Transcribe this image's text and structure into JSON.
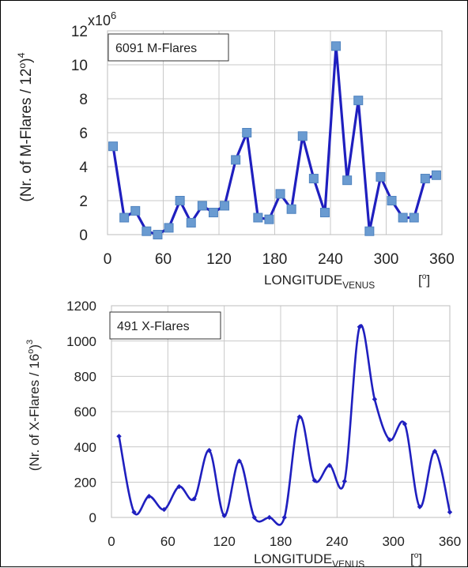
{
  "chart_data": [
    {
      "type": "line",
      "legend_box": "6091 M-Flares",
      "multiplier": "x10",
      "multiplier_exp": "6",
      "ylabel": {
        "base": "(Nr.  of  M-Flares / 12",
        "degree": "o",
        "close": ")",
        "exp": "4"
      },
      "xlabel": {
        "main": "LONGITUDE",
        "sub": "VENUS",
        "unit_open": "[",
        "unit_deg": "o",
        "unit_close": "]"
      },
      "xlim": [
        0,
        360
      ],
      "ylim": [
        0,
        12
      ],
      "x_ticks": [
        0,
        60,
        120,
        180,
        240,
        300,
        360
      ],
      "y_ticks": [
        0,
        2,
        4,
        6,
        8,
        10,
        12
      ],
      "grid": true,
      "marker": "square",
      "color": "#1f1fbf",
      "marker_color": "#6a9bd1",
      "series": [
        {
          "x": [
            6,
            18,
            30,
            42,
            54,
            66,
            78,
            90,
            102,
            114,
            126,
            138,
            150,
            162,
            174,
            186,
            198,
            210,
            222,
            234,
            246,
            258,
            270,
            282,
            294,
            306,
            318,
            330,
            342,
            354
          ],
          "values": [
            5.2,
            1.0,
            1.4,
            0.2,
            0.0,
            0.4,
            2.0,
            0.7,
            1.7,
            1.3,
            1.7,
            4.4,
            6.0,
            1.0,
            0.9,
            2.4,
            1.5,
            5.8,
            3.3,
            1.3,
            11.1,
            3.2,
            7.9,
            0.2,
            3.4,
            2.0,
            1.0,
            1.0,
            3.3,
            3.5
          ]
        }
      ]
    },
    {
      "type": "line",
      "legend_box": "491 X-Flares",
      "ylabel": {
        "base": "(Nr. of X-Flares / 16",
        "degree": "o",
        "close": ")",
        "exp": "3"
      },
      "xlabel": {
        "main": "LONGITUDE",
        "sub": "VENUS",
        "unit_open": "[",
        "unit_deg": "o",
        "unit_close": "]"
      },
      "xlim": [
        0,
        360
      ],
      "ylim": [
        0,
        1200
      ],
      "x_ticks": [
        0,
        60,
        120,
        180,
        240,
        300,
        360
      ],
      "y_ticks": [
        0,
        200,
        400,
        600,
        800,
        1000,
        1200
      ],
      "grid": true,
      "smooth": true,
      "marker": "diamond",
      "color": "#1f1fbf",
      "series": [
        {
          "x": [
            8,
            24,
            40,
            56,
            72,
            88,
            104,
            120,
            136,
            152,
            168,
            184,
            200,
            216,
            232,
            248,
            264,
            280,
            296,
            312,
            328,
            344,
            360
          ],
          "values": [
            460,
            30,
            120,
            45,
            175,
            105,
            380,
            10,
            320,
            0,
            0,
            0,
            570,
            210,
            295,
            205,
            1080,
            670,
            440,
            530,
            60,
            375,
            30
          ]
        }
      ]
    }
  ]
}
